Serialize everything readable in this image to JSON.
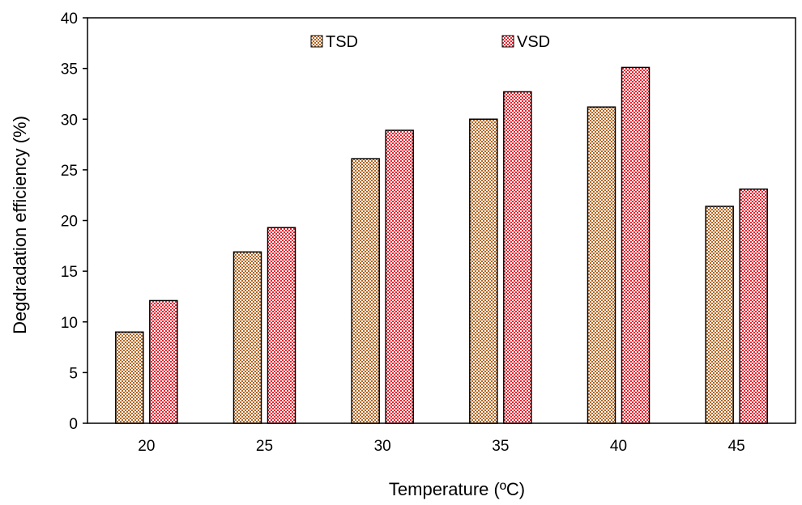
{
  "chart_data": {
    "type": "bar",
    "xlabel": "Temperature (ºC)",
    "ylabel": "Degdradation efficiency (%)",
    "categories": [
      "20",
      "25",
      "30",
      "35",
      "40",
      "45"
    ],
    "series": [
      {
        "name": "TSD",
        "values": [
          9.0,
          16.9,
          26.1,
          30.0,
          31.2,
          21.4
        ],
        "color": "#b5651d",
        "pattern": "dots"
      },
      {
        "name": "VSD",
        "values": [
          12.1,
          19.3,
          28.9,
          32.7,
          35.1,
          23.1
        ],
        "color": "#e8212e",
        "pattern": "dots"
      }
    ],
    "ylim": [
      0,
      40
    ],
    "yticks": [
      0,
      5,
      10,
      15,
      20,
      25,
      30,
      35,
      40
    ],
    "grid": false,
    "legend_position": "top-center"
  }
}
